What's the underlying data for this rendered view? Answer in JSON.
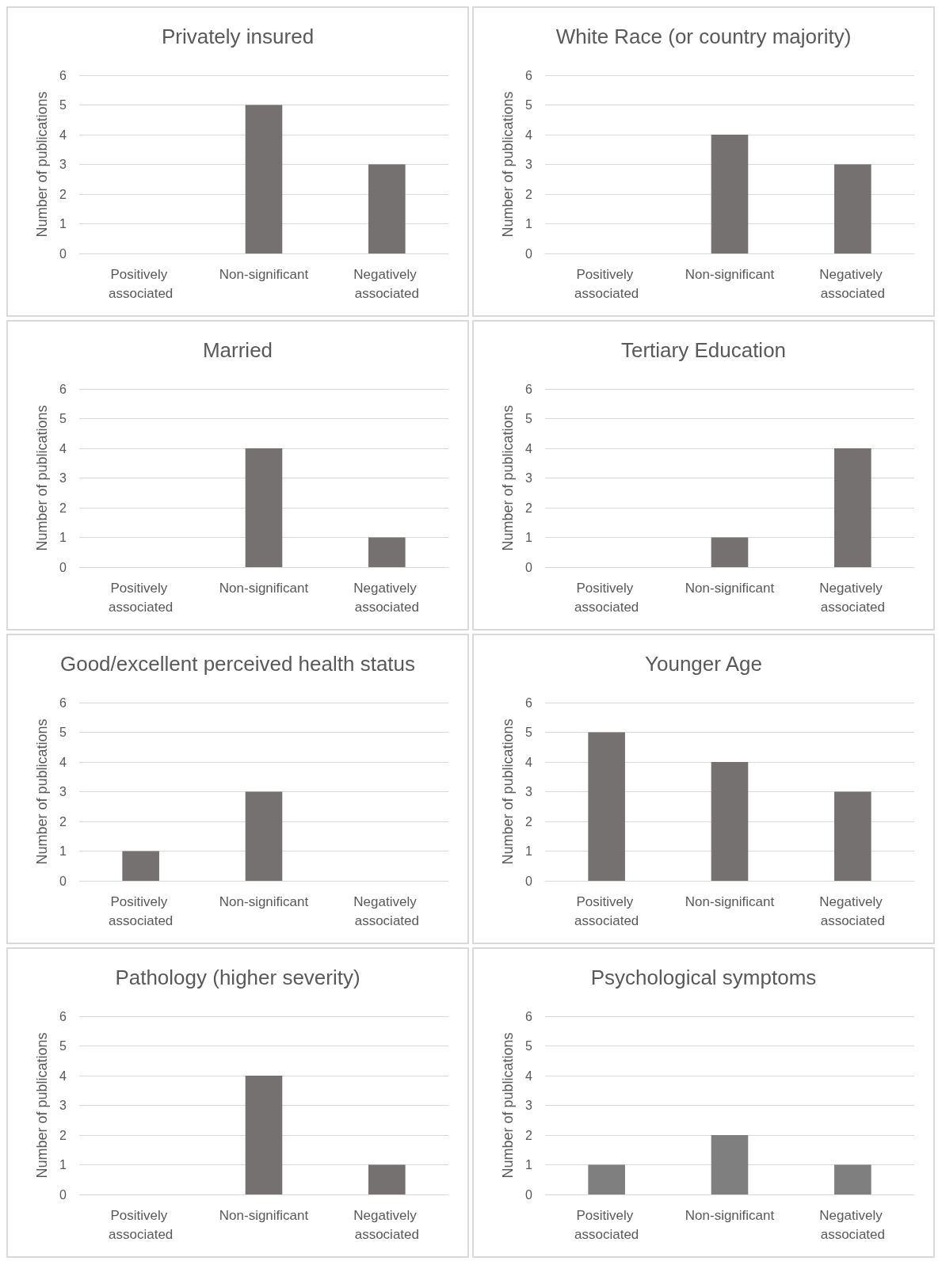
{
  "chart_data": [
    {
      "type": "bar",
      "title": "Privately insured",
      "ylabel": "Number of publications",
      "categories": [
        "Positively associated",
        "Non-significant",
        "Negatively associated"
      ],
      "values": [
        0,
        5,
        3
      ],
      "color": "#767171",
      "ylim": [
        0,
        6
      ],
      "yticks": [
        0,
        1,
        2,
        3,
        4,
        5,
        6
      ],
      "grid": "y"
    },
    {
      "type": "bar",
      "title": "White Race (or country majority)",
      "ylabel": "Number of publications",
      "categories": [
        "Positively associated",
        "Non-significant",
        "Negatively associated"
      ],
      "values": [
        0,
        4,
        3
      ],
      "color": "#767171",
      "ylim": [
        0,
        6
      ],
      "yticks": [
        0,
        1,
        2,
        3,
        4,
        5,
        6
      ],
      "grid": "y"
    },
    {
      "type": "bar",
      "title": "Married",
      "ylabel": "Number of publications",
      "categories": [
        "Positively associated",
        "Non-significant",
        "Negatively associated"
      ],
      "values": [
        0,
        4,
        1
      ],
      "color": "#767171",
      "ylim": [
        0,
        6
      ],
      "yticks": [
        0,
        1,
        2,
        3,
        4,
        5,
        6
      ],
      "grid": "y"
    },
    {
      "type": "bar",
      "title": "Tertiary Education",
      "ylabel": "Number of publications",
      "categories": [
        "Positively associated",
        "Non-significant",
        "Negatively associated"
      ],
      "values": [
        0,
        1,
        4
      ],
      "color": "#767171",
      "ylim": [
        0,
        6
      ],
      "yticks": [
        0,
        1,
        2,
        3,
        4,
        5,
        6
      ],
      "grid": "y"
    },
    {
      "type": "bar",
      "title": "Good/excellent perceived health status",
      "ylabel": "Number of publications",
      "categories": [
        "Positively associated",
        "Non-significant",
        "Negatively associated"
      ],
      "values": [
        1,
        3,
        0
      ],
      "color": "#767171",
      "ylim": [
        0,
        6
      ],
      "yticks": [
        0,
        1,
        2,
        3,
        4,
        5,
        6
      ],
      "grid": "y"
    },
    {
      "type": "bar",
      "title": "Younger Age",
      "ylabel": "Number of publications",
      "categories": [
        "Positively associated",
        "Non-significant",
        "Negatively associated"
      ],
      "values": [
        5,
        4,
        3
      ],
      "color": "#767171",
      "ylim": [
        0,
        6
      ],
      "yticks": [
        0,
        1,
        2,
        3,
        4,
        5,
        6
      ],
      "grid": "y"
    },
    {
      "type": "bar",
      "title": "Pathology (higher severity)",
      "ylabel": "Number of publications",
      "categories": [
        "Positively associated",
        "Non-significant",
        "Negatively associated"
      ],
      "values": [
        0,
        4,
        1
      ],
      "color": "#767171",
      "ylim": [
        0,
        6
      ],
      "yticks": [
        0,
        1,
        2,
        3,
        4,
        5,
        6
      ],
      "grid": "y"
    },
    {
      "type": "bar",
      "title": "Psychological symptoms",
      "ylabel": "Number of publications",
      "categories": [
        "Positively associated",
        "Non-significant",
        "Negatively associated"
      ],
      "values": [
        1,
        2,
        1
      ],
      "color": "#7f7f7f",
      "ylim": [
        0,
        6
      ],
      "yticks": [
        0,
        1,
        2,
        3,
        4,
        5,
        6
      ],
      "grid": "y"
    }
  ]
}
